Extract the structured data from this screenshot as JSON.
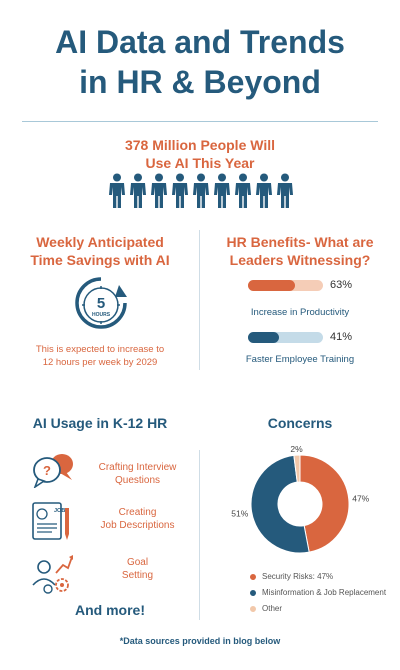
{
  "title": {
    "line1": "AI Data and Trends",
    "line2": "in HR & Beyond"
  },
  "people": {
    "headline1": "378 Million People Will",
    "headline2": "Use AI This Year",
    "icon": "person-icon",
    "count": 9
  },
  "time_savings": {
    "heading1": "Weekly Anticipated",
    "heading2": "Time Savings with AI",
    "hours_value": "5",
    "hours_unit": "HOURS",
    "note1": "This is expected to increase to",
    "note2": "12 hours per week by 2029"
  },
  "benefits": {
    "heading1": "HR Benefits- What are",
    "heading2": "Leaders Witnessing?",
    "items": [
      {
        "label": "Increase in Productivity",
        "value_text": "63%",
        "value": 0.63,
        "color": "#d9663f",
        "track": "#f5cdb7"
      },
      {
        "label": "Faster Employee Training",
        "value_text": "41%",
        "value": 0.41,
        "color": "#255a7c",
        "track": "#c4dbe8"
      }
    ]
  },
  "usage": {
    "heading": "AI Usage in K-12 HR",
    "items": [
      {
        "line1": "Crafting Interview",
        "line2": "Questions",
        "icon": "speech-bubbles-icon"
      },
      {
        "line1": "Creating",
        "line2": "Job Descriptions",
        "icon": "job-document-icon"
      },
      {
        "line1": "Goal",
        "line2": "Setting",
        "icon": "goal-gears-icon"
      }
    ],
    "more": "And more!"
  },
  "concerns": {
    "heading": "Concerns",
    "legend": [
      "Security Risks: 47%",
      "Misinformation & Job Replacement",
      "Other"
    ]
  },
  "chart_data": {
    "type": "pie",
    "title": "Concerns",
    "categories": [
      "Security Risks",
      "Misinformation & Job Replacement",
      "Other"
    ],
    "values": [
      47,
      51,
      2
    ],
    "value_labels": [
      "47%",
      "51%",
      "2%"
    ],
    "colors": [
      "#d9663f",
      "#255a7c",
      "#f2c8aa"
    ],
    "donut": true,
    "legend_position": "bottom"
  },
  "colors": {
    "orange": "#d9663f",
    "navy": "#255a7c",
    "peach": "#f2c8aa"
  },
  "footer": "*Data sources provided in blog below"
}
